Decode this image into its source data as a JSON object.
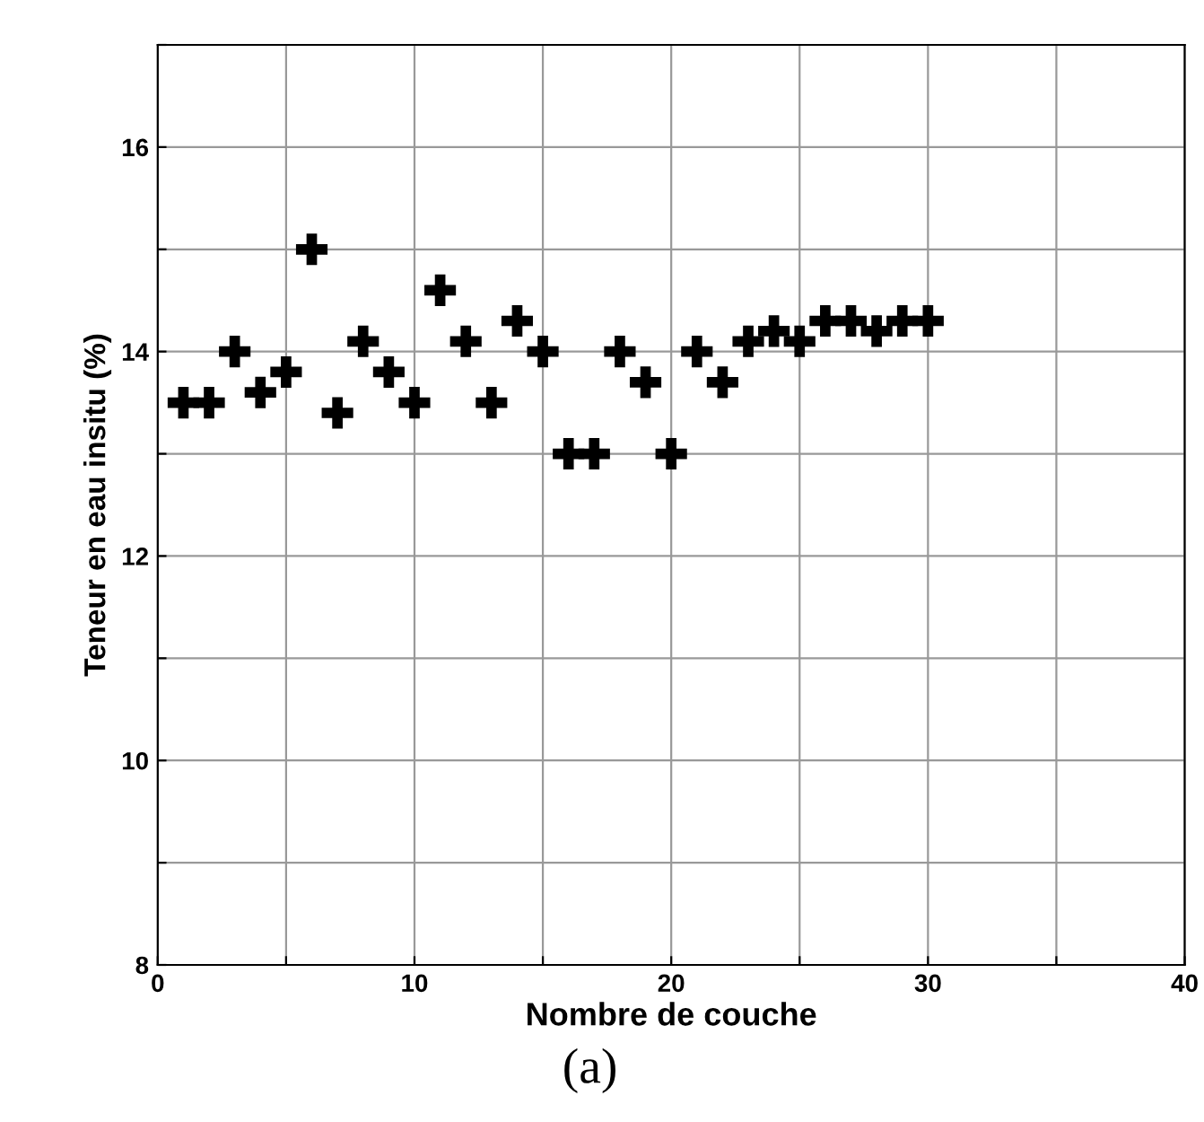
{
  "chart_data": {
    "type": "scatter",
    "xlabel": "Nombre de couche",
    "ylabel": "Teneur en eau insitu (%)",
    "x": [
      1,
      2,
      3,
      4,
      5,
      6,
      7,
      8,
      9,
      10,
      11,
      12,
      13,
      14,
      15,
      16,
      17,
      18,
      19,
      20,
      21,
      22,
      23,
      24,
      25,
      26,
      27,
      28,
      29,
      30
    ],
    "series": [
      {
        "color": "#000000",
        "values": [
          13.5,
          13.5,
          14.0,
          13.6,
          13.8,
          15.0,
          13.4,
          14.1,
          13.8,
          13.5,
          14.6,
          14.1,
          13.5,
          14.3,
          14.0,
          13.0,
          13.0,
          14.0,
          13.7,
          13.0,
          14.0,
          13.7,
          14.1,
          14.2,
          14.1,
          14.3,
          14.3,
          14.2,
          14.3,
          14.3
        ]
      }
    ],
    "xlim": [
      0,
      40
    ],
    "ylim": [
      8,
      17
    ],
    "xticks": [
      0,
      {
        "value": 5,
        "label": null
      },
      10,
      {
        "value": 15,
        "label": null
      },
      20,
      {
        "value": 25,
        "label": null
      },
      30,
      {
        "value": 35,
        "label": null
      },
      40
    ],
    "yticks": [
      8,
      {
        "value": 9,
        "label": null
      },
      10,
      {
        "value": 11,
        "label": null
      },
      12,
      {
        "value": 13,
        "label": null
      },
      14,
      {
        "value": 15,
        "label": null
      },
      16,
      {
        "value": 17,
        "label": null
      }
    ],
    "grid": true,
    "marker": "cross",
    "legend": false,
    "annotations": [
      "(a)"
    ]
  }
}
